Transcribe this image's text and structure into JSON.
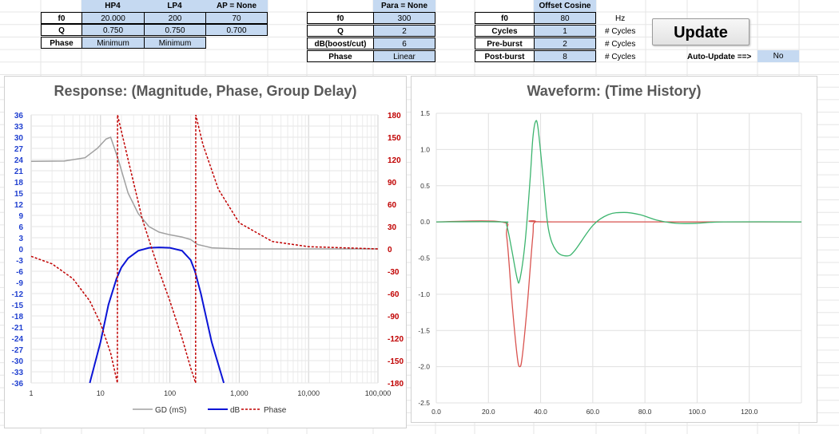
{
  "hp4": {
    "header": "HP4",
    "f0": "20.000",
    "q": "0.750",
    "phase": "Minimum"
  },
  "lp4": {
    "header": "LP4",
    "f0": "200",
    "q": "0.750",
    "phase": "Minimum"
  },
  "ap": {
    "header": "AP = None",
    "f0": "70",
    "q": "0.700"
  },
  "row_labels": {
    "f0": "f0",
    "q": "Q",
    "phase": "Phase"
  },
  "para": {
    "header": "Para = None",
    "labels": [
      "f0",
      "Q",
      "dB(boost/cut)",
      "Phase"
    ],
    "values": [
      "300",
      "2",
      "6",
      "Linear"
    ]
  },
  "offset": {
    "header": "Offset Cosine",
    "labels": [
      "f0",
      "Cycles",
      "Pre-burst",
      "Post-burst"
    ],
    "values": [
      "80",
      "1",
      "2",
      "8"
    ],
    "units": [
      "Hz",
      "# Cycles",
      "# Cycles",
      "# Cycles"
    ]
  },
  "update_label": "Update",
  "auto_update": {
    "label": "Auto-Update ==>",
    "value": "No"
  },
  "colors": {
    "gd": "#a0a0a0",
    "db": "#0b14d6",
    "phase": "#c00000",
    "wave_red": "#d9534f",
    "wave_green": "#3cb46e",
    "cell_blue": "#c5d9f1",
    "left_axis": "#1f3fd0",
    "right_axis": "#c00000"
  },
  "chart_data": [
    {
      "type": "line",
      "title": "Response: (Magnitude, Phase, Group Delay)",
      "x_scale": "log",
      "xlim": [
        1,
        100000
      ],
      "x_ticks": [
        "1",
        "10",
        "100",
        "1,000",
        "10,000",
        "100,000"
      ],
      "ylim_left": [
        -36,
        36
      ],
      "y_ticks_left": [
        "36",
        "33",
        "30",
        "27",
        "24",
        "21",
        "18",
        "15",
        "12",
        "9",
        "6",
        "3",
        "0",
        "-3",
        "-6",
        "-9",
        "-12",
        "-15",
        "-18",
        "-21",
        "-24",
        "-27",
        "-30",
        "-33",
        "-36"
      ],
      "ylim_right": [
        -180,
        180
      ],
      "y_ticks_right": [
        "180",
        "150",
        "120",
        "90",
        "60",
        "30",
        "0",
        "-30",
        "-60",
        "-90",
        "-120",
        "-150",
        "-180"
      ],
      "legend_position": "bottom",
      "grid": true,
      "series": [
        {
          "name": "GD (mS)",
          "axis": "left",
          "x": [
            1,
            3,
            6,
            9,
            12,
            14,
            18,
            25,
            35,
            50,
            70,
            100,
            150,
            200,
            250,
            400,
            700,
            1000,
            5000,
            100000
          ],
          "y": [
            23.5,
            23.6,
            24.5,
            27,
            29.5,
            30,
            24,
            15,
            9.5,
            6,
            4.5,
            3.8,
            3.2,
            2.5,
            1.2,
            0.3,
            0.1,
            0,
            0,
            0
          ]
        },
        {
          "name": "dB",
          "axis": "left",
          "x": [
            7,
            10,
            13,
            17,
            20,
            25,
            35,
            50,
            70,
            100,
            150,
            200,
            230,
            280,
            400,
            600
          ],
          "y": [
            -36,
            -25,
            -15,
            -8,
            -5,
            -2.5,
            -0.5,
            0.3,
            0.4,
            0.3,
            -0.5,
            -3,
            -6,
            -12,
            -25,
            -36
          ]
        },
        {
          "name": "Phase",
          "axis": "right",
          "x": [
            1,
            2,
            4,
            7,
            10,
            14,
            17.5,
            17.6,
            25,
            40,
            70,
            100,
            150,
            200,
            235,
            236,
            300,
            500,
            1000,
            3000,
            10000,
            100000
          ],
          "y": [
            -10,
            -20,
            -40,
            -70,
            -100,
            -140,
            -180,
            180,
            120,
            40,
            -30,
            -70,
            -120,
            -160,
            -180,
            180,
            140,
            80,
            35,
            10,
            3,
            0
          ]
        }
      ]
    },
    {
      "type": "line",
      "title": "Waveform: (Time History)",
      "xlim": [
        0,
        140
      ],
      "x_ticks": [
        "0.0",
        "20.0",
        "40.0",
        "60.0",
        "80.0",
        "100.0",
        "120.0"
      ],
      "ylim": [
        -2.5,
        1.5
      ],
      "y_ticks": [
        "1.5",
        "1.0",
        "0.5",
        "0.0",
        "-0.5",
        "-1.0",
        "-1.5",
        "-2.0",
        "-2.5"
      ],
      "grid": true,
      "series": [
        {
          "color_key": "wave_red",
          "x": [
            0,
            25,
            27,
            29,
            31,
            32,
            33,
            35,
            37,
            38,
            45,
            140
          ],
          "y": [
            0,
            0,
            -0.2,
            -1.1,
            -1.85,
            -2.0,
            -1.85,
            -1.1,
            -0.2,
            0,
            0,
            0
          ]
        },
        {
          "color_key": "wave_green",
          "x": [
            0,
            25,
            27,
            29,
            31,
            32,
            34,
            36,
            37,
            38,
            39,
            41,
            43,
            46,
            50,
            53,
            60,
            66,
            72,
            78,
            85,
            92,
            100,
            110,
            140
          ],
          "y": [
            0,
            0,
            -0.05,
            -0.4,
            -0.78,
            -0.8,
            -0.3,
            0.6,
            1.15,
            1.38,
            1.3,
            0.6,
            -0.1,
            -0.4,
            -0.47,
            -0.4,
            -0.05,
            0.1,
            0.13,
            0.1,
            0.02,
            -0.02,
            -0.02,
            0,
            0
          ]
        }
      ]
    }
  ]
}
